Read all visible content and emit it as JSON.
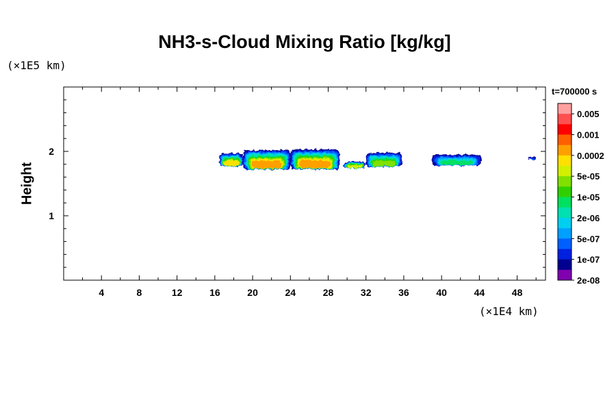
{
  "chart_data": {
    "type": "heatmap",
    "title": "NH3-s-Cloud Mixing Ratio [kg/kg]",
    "ylabel": "Height",
    "y_unit": "(×1E5 km)",
    "x_unit": "(×1E4 km)",
    "time_label": "t=700000 s",
    "xlim": [
      0,
      51
    ],
    "ylim": [
      0,
      3
    ],
    "x_ticks": [
      4,
      8,
      12,
      16,
      20,
      24,
      28,
      32,
      36,
      40,
      44,
      48
    ],
    "y_ticks": [
      1,
      2
    ],
    "colorbar": {
      "labels": [
        "0.005",
        "0.001",
        "0.0002",
        "5e-05",
        "1e-05",
        "2e-06",
        "5e-07",
        "1e-07",
        "2e-08"
      ],
      "colors": [
        "#ffa0a0",
        "#ff5050",
        "#ff0000",
        "#ff6000",
        "#ffa000",
        "#ffe000",
        "#d2f000",
        "#80e000",
        "#30d000",
        "#00e060",
        "#00e0b0",
        "#00d0f0",
        "#00a0ff",
        "#0060ff",
        "#0020e0",
        "#000090",
        "#8000b0"
      ]
    },
    "clouds": [
      {
        "x": [
          16.5,
          19.0
        ],
        "y": [
          1.76,
          1.97
        ],
        "max_level": 5
      },
      {
        "x": [
          19.0,
          24.0
        ],
        "y": [
          1.72,
          2.02
        ],
        "max_level": 4
      },
      {
        "x": [
          24.0,
          29.2
        ],
        "y": [
          1.72,
          2.03
        ],
        "max_level": 4
      },
      {
        "x": [
          29.6,
          32.0
        ],
        "y": [
          1.74,
          1.84
        ],
        "max_level": 6
      },
      {
        "x": [
          32.0,
          35.8
        ],
        "y": [
          1.76,
          1.98
        ],
        "max_level": 7
      },
      {
        "x": [
          39.0,
          44.2
        ],
        "y": [
          1.78,
          1.95
        ],
        "max_level": 9
      },
      {
        "x": [
          49.2,
          50.0
        ],
        "y": [
          1.87,
          1.91
        ],
        "max_level": 13
      }
    ]
  }
}
